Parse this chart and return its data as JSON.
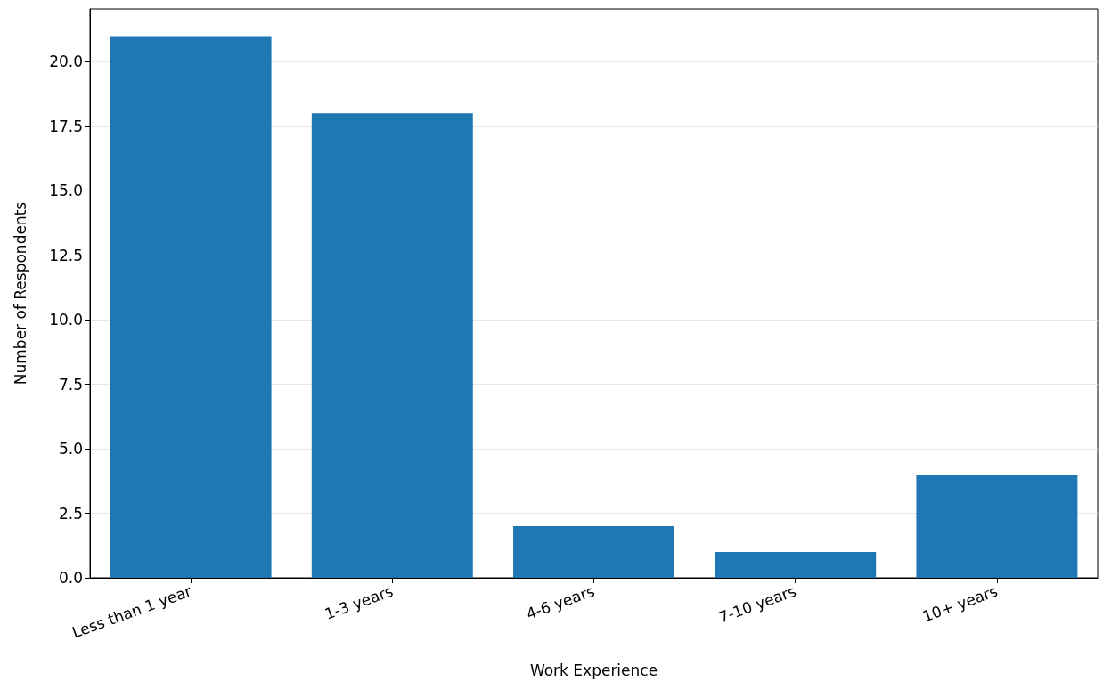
{
  "chart_data": {
    "type": "bar",
    "xlabel": "Work Experience",
    "ylabel": "Number of Respondents",
    "categories": [
      "Less than 1 year",
      "1-3 years",
      "4-6 years",
      "7-10 years",
      "10+ years"
    ],
    "values": [
      21,
      18,
      2,
      1,
      4
    ],
    "color": "#1f77b4",
    "ylim": [
      0,
      22.05
    ],
    "yticks": [
      {
        "value": 0,
        "label": "0.0"
      },
      {
        "value": 2.5,
        "label": "2.5"
      },
      {
        "value": 5,
        "label": "5.0"
      },
      {
        "value": 7.5,
        "label": "7.5"
      },
      {
        "value": 10,
        "label": "10.0"
      },
      {
        "value": 12.5,
        "label": "12.5"
      },
      {
        "value": 15,
        "label": "15.0"
      },
      {
        "value": 17.5,
        "label": "17.5"
      },
      {
        "value": 20,
        "label": "20.0"
      }
    ],
    "grid": "y"
  }
}
